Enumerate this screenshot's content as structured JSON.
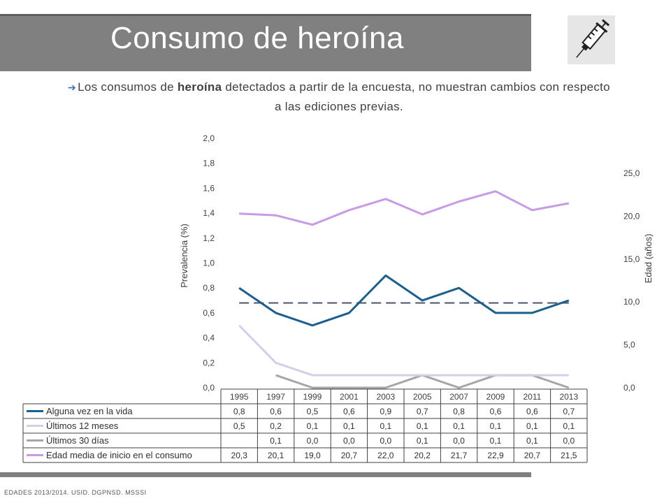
{
  "slide": {
    "title": "Consumo de heroína",
    "intro_before": "Los consumos de ",
    "intro_bold": "heroína",
    "intro_after": " detectados a partir de la encuesta, no muestran cambios con respecto a las ediciones previas.",
    "source": "EDADES 2013/2014. USID. DGPNSD. MSSSI",
    "icon": "syringe-icon"
  },
  "chart_data": {
    "type": "line",
    "x": [
      "1995",
      "1997",
      "1999",
      "2001",
      "2003",
      "2005",
      "2007",
      "2009",
      "2011",
      "2013"
    ],
    "ylabel_left": "Prevalencia (%)",
    "ylabel_right": "Edad (años)",
    "ylim_left": [
      0,
      2.0
    ],
    "ylim_right": [
      0,
      25.0
    ],
    "yticks_left": [
      "0,0",
      "0,2",
      "0,4",
      "0,6",
      "0,8",
      "1,0",
      "1,2",
      "1,4",
      "1,6",
      "1,8",
      "2,0"
    ],
    "yticks_right": [
      "0,0",
      "5,0",
      "10,0",
      "15,0",
      "20,0",
      "25,0"
    ],
    "grid": false,
    "series": [
      {
        "name": "Alguna vez en la vida",
        "axis": "left",
        "color": "#1b5f8c",
        "values": [
          0.8,
          0.6,
          0.5,
          0.6,
          0.9,
          0.7,
          0.8,
          0.6,
          0.6,
          0.7
        ],
        "labels": [
          "0,8",
          "0,6",
          "0,5",
          "0,6",
          "0,9",
          "0,7",
          "0,8",
          "0,6",
          "0,6",
          "0,7"
        ]
      },
      {
        "name": "Últimos 12 meses",
        "axis": "left",
        "color": "#d0d0e8",
        "values": [
          0.5,
          0.2,
          0.1,
          0.1,
          0.1,
          0.1,
          0.1,
          0.1,
          0.1,
          0.1
        ],
        "labels": [
          "0,5",
          "0,2",
          "0,1",
          "0,1",
          "0,1",
          "0,1",
          "0,1",
          "0,1",
          "0,1",
          "0,1"
        ]
      },
      {
        "name": "Últimos 30 días",
        "axis": "left",
        "color": "#a6a6a6",
        "values": [
          null,
          0.1,
          0.0,
          0.0,
          0.0,
          0.1,
          0.0,
          0.1,
          0.1,
          0.0
        ],
        "labels": [
          "",
          "0,1",
          "0,0",
          "0,0",
          "0,0",
          "0,1",
          "0,0",
          "0,1",
          "0,1",
          "0,0"
        ]
      },
      {
        "name": "Edad media de inicio en el consumo",
        "axis": "right",
        "color": "#c79be6",
        "values": [
          20.3,
          20.1,
          19.0,
          20.7,
          22.0,
          20.2,
          21.7,
          22.9,
          20.7,
          21.5
        ],
        "labels": [
          "20,3",
          "20,1",
          "19,0",
          "20,7",
          "22,0",
          "20,2",
          "21,7",
          "22,9",
          "20,7",
          "21,5"
        ]
      }
    ],
    "trendline": {
      "series": "Alguna vez en la vida",
      "style": "dashed",
      "color": "#4a5668"
    }
  }
}
